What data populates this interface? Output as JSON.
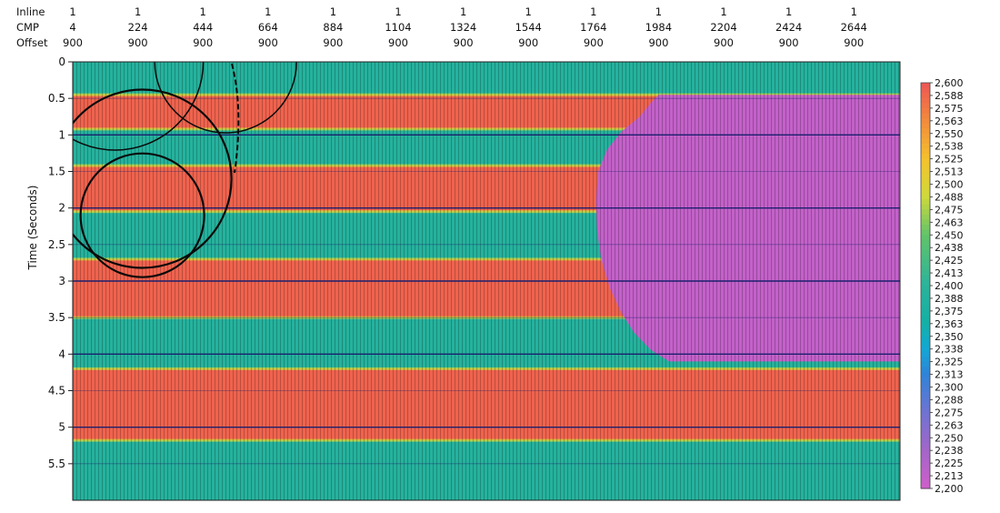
{
  "chart_data": {
    "type": "heatmap",
    "ylabel": "Time (Seconds)",
    "header_rows": [
      {
        "label": "Inline",
        "values": [
          "1",
          "1",
          "1",
          "1",
          "1",
          "1",
          "1",
          "1",
          "1",
          "1",
          "1",
          "1",
          "1"
        ]
      },
      {
        "label": "CMP",
        "values": [
          "4",
          "224",
          "444",
          "664",
          "884",
          "1104",
          "1324",
          "1544",
          "1764",
          "1984",
          "2204",
          "2424",
          "2644"
        ]
      },
      {
        "label": "Offset",
        "values": [
          "900",
          "900",
          "900",
          "900",
          "900",
          "900",
          "900",
          "900",
          "900",
          "900",
          "900",
          "900",
          "900"
        ]
      }
    ],
    "cmp_range": [
      4,
      2800
    ],
    "ylim": [
      0,
      6.0
    ],
    "y_ticks": [
      {
        "value": 0,
        "label": "0"
      },
      {
        "value": 0.5,
        "label": "0.5"
      },
      {
        "value": 1,
        "label": "1"
      },
      {
        "value": 1.5,
        "label": "1.5"
      },
      {
        "value": 2,
        "label": "2"
      },
      {
        "value": 2.5,
        "label": "2.5"
      },
      {
        "value": 3,
        "label": "3"
      },
      {
        "value": 3.5,
        "label": "3.5"
      },
      {
        "value": 4,
        "label": "4"
      },
      {
        "value": 4.5,
        "label": "4.5"
      },
      {
        "value": 5,
        "label": "5"
      },
      {
        "value": 5.5,
        "label": "5.5"
      }
    ],
    "layers": [
      {
        "t0": 0.0,
        "t1": 0.45,
        "value": 2390
      },
      {
        "t0": 0.45,
        "t1": 0.92,
        "value": 2590
      },
      {
        "t0": 0.92,
        "t1": 1.42,
        "value": 2390
      },
      {
        "t0": 1.42,
        "t1": 2.05,
        "value": 2590
      },
      {
        "t0": 2.05,
        "t1": 2.7,
        "value": 2390
      },
      {
        "t0": 2.7,
        "t1": 3.5,
        "value": 2590
      },
      {
        "t0": 3.5,
        "t1": 4.2,
        "value": 2390
      },
      {
        "t0": 4.2,
        "t1": 5.18,
        "value": 2590
      },
      {
        "t0": 5.18,
        "t1": 6.0,
        "value": 2390
      }
    ],
    "salt_body": {
      "value": 2210,
      "outline": [
        [
          1984,
          0.45
        ],
        [
          2800,
          0.45
        ],
        [
          2800,
          4.1
        ],
        [
          2020,
          4.1
        ],
        [
          1960,
          3.95
        ],
        [
          1900,
          3.7
        ],
        [
          1854,
          3.4
        ],
        [
          1820,
          3.1
        ],
        [
          1790,
          2.7
        ],
        [
          1776,
          2.3
        ],
        [
          1772,
          1.9
        ],
        [
          1780,
          1.5
        ],
        [
          1810,
          1.2
        ],
        [
          1860,
          0.95
        ],
        [
          1920,
          0.75
        ],
        [
          1960,
          0.55
        ]
      ]
    },
    "colorbar": {
      "min": 2200,
      "max": 2600,
      "tick_labels": [
        "2,600",
        "2,588",
        "2,575",
        "2,563",
        "2,550",
        "2,538",
        "2,525",
        "2,513",
        "2,500",
        "2,488",
        "2,475",
        "2,463",
        "2,450",
        "2,438",
        "2,425",
        "2,413",
        "2,400",
        "2,388",
        "2,375",
        "2,363",
        "2,350",
        "2,338",
        "2,325",
        "2,313",
        "2,300",
        "2,288",
        "2,275",
        "2,263",
        "2,250",
        "2,238",
        "2,225",
        "2,213",
        "2,200"
      ],
      "stops": [
        {
          "value": 2200,
          "color": "#cf5fca"
        },
        {
          "value": 2238,
          "color": "#a266c8"
        },
        {
          "value": 2275,
          "color": "#6f73d2"
        },
        {
          "value": 2313,
          "color": "#2f84d8"
        },
        {
          "value": 2338,
          "color": "#13a8d4"
        },
        {
          "value": 2363,
          "color": "#14b0a6"
        },
        {
          "value": 2400,
          "color": "#2bb39a"
        },
        {
          "value": 2450,
          "color": "#62c46a"
        },
        {
          "value": 2488,
          "color": "#cfd93a"
        },
        {
          "value": 2525,
          "color": "#f4c12e"
        },
        {
          "value": 2563,
          "color": "#f38a3c"
        },
        {
          "value": 2600,
          "color": "#ee5555"
        }
      ]
    },
    "grid": true,
    "legend_placement": "right"
  }
}
